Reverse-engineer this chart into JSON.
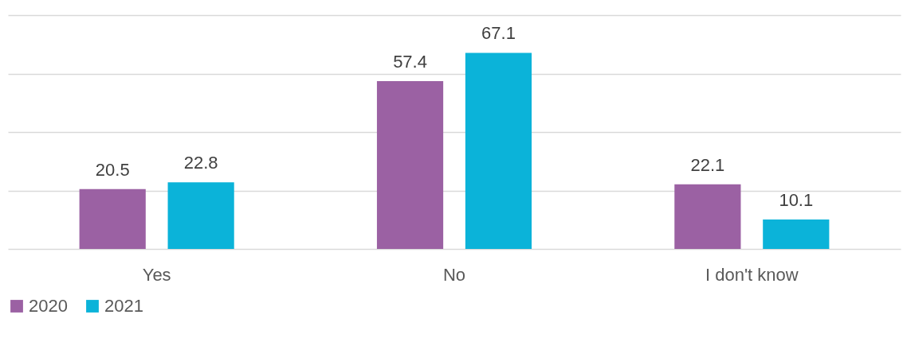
{
  "chart_data": {
    "type": "bar",
    "categories": [
      "Yes",
      "No",
      "I don't know"
    ],
    "series": [
      {
        "name": "2020",
        "color": "#9b61a3",
        "values": [
          20.5,
          57.4,
          22.1
        ]
      },
      {
        "name": "2021",
        "color": "#0bb3d9",
        "values": [
          22.8,
          67.1,
          10.1
        ]
      }
    ],
    "ylim": [
      0,
      80
    ],
    "yticks": [
      {
        "value": 0,
        "label": null
      },
      {
        "value": 20,
        "label": null
      },
      {
        "value": 40,
        "label": null
      },
      {
        "value": 60,
        "label": null
      },
      {
        "value": 80,
        "label": null
      }
    ],
    "grid": "y",
    "tick_labels": "x",
    "data_labels": true,
    "legend": "bottom"
  }
}
